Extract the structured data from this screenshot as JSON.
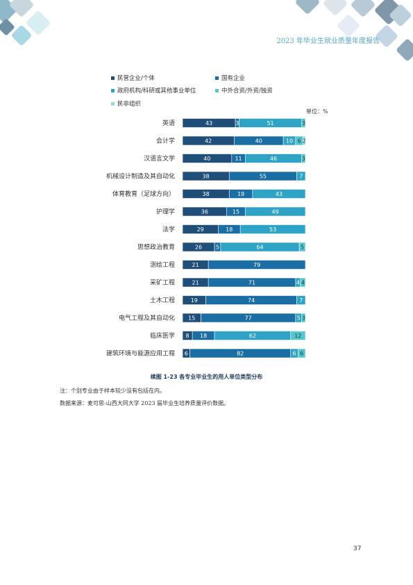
{
  "header": {
    "title": "2023 年毕业生就业质量年度报告"
  },
  "chart_data": {
    "type": "stacked-barh",
    "title": "续图 1-23 各专业毕业生的用人单位类型分布",
    "unit": "单位：%",
    "categories": [
      "英语",
      "会计学",
      "汉语言文学",
      "机械设计制造及其自动化",
      "体育教育（足球方向）",
      "护理学",
      "法学",
      "思想政治教育",
      "测绘工程",
      "采矿工程",
      "土木工程",
      "电气工程及其自动化",
      "临床医学",
      "建筑环境与能源应用工程"
    ],
    "xlim": [
      0,
      100
    ],
    "series": [
      {
        "name": "民营企业/个体",
        "color": "#1f4e79",
        "values": [
          43,
          42,
          40,
          38,
          38,
          36,
          29,
          26,
          21,
          21,
          19,
          15,
          8,
          6
        ]
      },
      {
        "name": "国有企业",
        "color": "#1b6ea3",
        "values": [
          3,
          40,
          11,
          55,
          19,
          15,
          18,
          5,
          79,
          71,
          74,
          77,
          18,
          82
        ]
      },
      {
        "name": "政府机构/科研或其他事业单位",
        "color": "#2fa3c6",
        "values": [
          51,
          10,
          46,
          7,
          43,
          49,
          53,
          64,
          null,
          4,
          7,
          5,
          62,
          6
        ]
      },
      {
        "name": "中外合资/外资/独资",
        "color": "#55c6c9",
        "values": [
          3,
          6,
          3,
          null,
          null,
          null,
          null,
          5,
          null,
          4,
          null,
          3,
          12,
          6
        ]
      },
      {
        "name": "民非组织",
        "color": "#93dbe0",
        "values": [
          null,
          2,
          null,
          null,
          null,
          null,
          null,
          null,
          null,
          null,
          null,
          null,
          null,
          null
        ]
      }
    ]
  },
  "notes": [
    "注：个别专业由于样本较少没有包括在内。",
    "数据来源：麦可思-山西大同大学 2023 届毕业生培养质量评价数据。"
  ],
  "page_number": "37"
}
